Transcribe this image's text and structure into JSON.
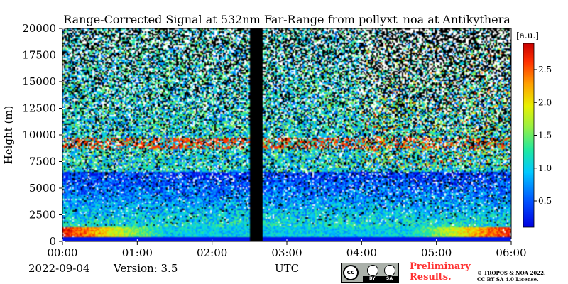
{
  "chart_data": {
    "type": "heatmap",
    "title": "Range-Corrected Signal at 532nm Far-Range from pollyxt_noa at Antikythera",
    "xlabel": "UTC",
    "ylabel": "Height (m)",
    "x_ticks": [
      "00:00",
      "01:00",
      "02:00",
      "03:00",
      "04:00",
      "05:00",
      "06:00"
    ],
    "xlim_hours": [
      0,
      6
    ],
    "y_ticks": [
      0,
      2500,
      5000,
      7500,
      10000,
      12500,
      15000,
      17500,
      20000
    ],
    "ylim": [
      0,
      20000
    ],
    "colorbar": {
      "unit": "[a.u.]",
      "ticks": [
        0.5,
        1.0,
        1.5,
        2.0,
        2.5
      ],
      "range": [
        0.1,
        2.9
      ],
      "colormap": "jet",
      "over_color": "#ffffff",
      "no_data_color": "#000000"
    },
    "features": [
      {
        "description": "no-data gap",
        "start_hour": 2.5,
        "end_hour": 2.67
      },
      {
        "description": "elevated layer",
        "height_m": [
          8700,
          9700
        ],
        "value": 2.6
      },
      {
        "description": "cirrus",
        "start_hour": 4.0,
        "end_hour": 6.0,
        "height_m": [
          7000,
          18500
        ]
      }
    ]
  },
  "footer": {
    "date": "2022-09-04",
    "version": "Version: 3.5",
    "utc": "UTC",
    "preliminary_line1": "Preliminary",
    "preliminary_line2": "Results.",
    "copyright_line1": "© TROPOS & NOA 2022.",
    "copyright_line2": "CC BY SA 4.0 License."
  },
  "license_badge": {
    "cc": "cc",
    "by": "BY",
    "sa": "SA"
  },
  "colors": {
    "preliminary": "#ff3333"
  }
}
